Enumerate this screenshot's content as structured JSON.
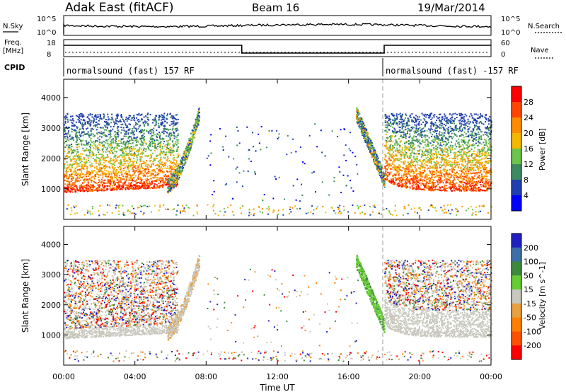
{
  "header": {
    "title": "Adak East (fitACF)",
    "beam": "Beam 16",
    "date": "19/Mar/2014"
  },
  "top_panels": {
    "nsky_label": "N.Sky",
    "nsky_ticks": [
      "10^5",
      "10^0"
    ],
    "nsearch_label": "N.Search",
    "nsearch_ticks": [
      "10^5",
      "10^0"
    ],
    "freq_label": "Freq.",
    "freq_unit": "[MHz]",
    "freq_ticks": [
      "18",
      "8"
    ],
    "nave_label": "Nave",
    "nave_ticks": [
      "60",
      "0"
    ],
    "cpid_label": "CPID",
    "cpid_segments": [
      {
        "label": "normalsound (fast) 157 RF",
        "start_h": 0,
        "end_h": 18
      },
      {
        "label": "normalsound (fast) -157 RF",
        "start_h": 18,
        "end_h": 24
      }
    ],
    "freq_steps": [
      {
        "start_h": 0,
        "end_h": 10,
        "level": 0.8
      },
      {
        "start_h": 10,
        "end_h": 18,
        "level": 0.25
      },
      {
        "start_h": 18,
        "end_h": 24,
        "level": 0.8
      }
    ]
  },
  "chart_data": [
    {
      "type": "heatmap",
      "panel": "power",
      "ylabel": "Slant Range [km]",
      "yticks": [
        1000,
        2000,
        3000,
        4000
      ],
      "ylim": [
        0,
        4600
      ],
      "xlim": [
        0,
        24
      ],
      "colorbar_label": "Power [dB]",
      "colorbar_ticks": [
        "28",
        "24",
        "20",
        "16",
        "12",
        "8",
        "4"
      ],
      "colorbar_colors": [
        "#ff0000",
        "#ff4500",
        "#ff8c00",
        "#f5b800",
        "#6cc44a",
        "#3d8a60",
        "#1f3fb0",
        "#0000ff"
      ],
      "echo_regions": [
        {
          "h0": 0.0,
          "h1": 6.0,
          "r0": 900,
          "r1": 3500,
          "intensity": "high"
        },
        {
          "h0": 6.0,
          "h1": 8.0,
          "r0": 1000,
          "r1": 3500,
          "intensity": "medium"
        },
        {
          "h0": 16.5,
          "h1": 18.0,
          "r0": 1200,
          "r1": 3600,
          "intensity": "low"
        },
        {
          "h0": 18.0,
          "h1": 24.0,
          "r0": 900,
          "r1": 3500,
          "intensity": "high"
        }
      ]
    },
    {
      "type": "heatmap",
      "panel": "velocity",
      "ylabel": "Slant Range [km]",
      "yticks": [
        1000,
        2000,
        3000,
        4000
      ],
      "ylim": [
        0,
        4600
      ],
      "xlim": [
        0,
        24
      ],
      "xticks": [
        "00:00",
        "04:00",
        "08:00",
        "12:00",
        "16:00",
        "20:00",
        "00:00"
      ],
      "xlabel": "Time UT",
      "colorbar_label": "Velocity [m s^-1]",
      "colorbar_ticks": [
        "200",
        "100",
        "50",
        "15",
        "-15",
        "-50",
        "-100",
        "-200"
      ],
      "colorbar_colors": [
        "#2020c0",
        "#3c6ea8",
        "#3d8a3d",
        "#66cc33",
        "#c8c8be",
        "#e8a040",
        "#ff8000",
        "#ff5000",
        "#ff0000"
      ]
    }
  ]
}
